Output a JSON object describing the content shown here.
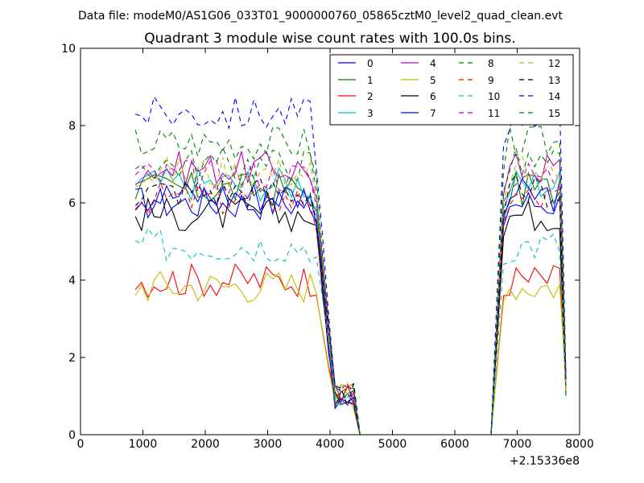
{
  "figure": {
    "suptitle": "Data file: modeM0/AS1G06_033T01_9000000760_05865cztM0_level2_quad_clean.evt"
  },
  "chart_data": {
    "type": "line",
    "title": "Quadrant 3 module wise count rates with 100.0s bins.",
    "xlabel": "",
    "ylabel": "",
    "xlim": [
      0,
      8000
    ],
    "ylim": [
      0,
      10
    ],
    "x_ticks": [
      "0",
      "1000",
      "2000",
      "3000",
      "4000",
      "5000",
      "6000",
      "7000",
      "8000"
    ],
    "y_ticks": [
      "0",
      "2",
      "4",
      "6",
      "8",
      "10"
    ],
    "x_offset_label": "+2.15336e8",
    "grid": false,
    "legend_position": "top-right",
    "legend_columns": 4,
    "bins": {
      "start": 880,
      "step": 100,
      "count": 70,
      "gap_from": 4480,
      "gap_to": 6580
    },
    "series": [
      {
        "name": "0",
        "color": "#0000ff",
        "dash": "solid",
        "level": 6.0
      },
      {
        "name": "1",
        "color": "#008000",
        "dash": "solid",
        "level": 6.35
      },
      {
        "name": "2",
        "color": "#ff0000",
        "dash": "solid",
        "level": 4.0
      },
      {
        "name": "3",
        "color": "#00bfbf",
        "dash": "solid",
        "level": 6.5
      },
      {
        "name": "4",
        "color": "#bf00bf",
        "dash": "solid",
        "level": 6.9
      },
      {
        "name": "5",
        "color": "#bfbf00",
        "dash": "solid",
        "level": 3.85
      },
      {
        "name": "6",
        "color": "#000000",
        "dash": "solid",
        "level": 5.7
      },
      {
        "name": "7",
        "color": "#0000ff",
        "dash": "solid",
        "level": 6.2
      },
      {
        "name": "8",
        "color": "#008000",
        "dash": "dashed",
        "level": 7.55
      },
      {
        "name": "9",
        "color": "#ff0000",
        "dash": "dashed",
        "level": 6.1
      },
      {
        "name": "10",
        "color": "#00bfbf",
        "dash": "dashed",
        "level": 4.9
      },
      {
        "name": "11",
        "color": "#bf00bf",
        "dash": "dashed",
        "level": 6.7
      },
      {
        "name": "12",
        "color": "#bfbf00",
        "dash": "dashed",
        "level": 6.8
      },
      {
        "name": "13",
        "color": "#000000",
        "dash": "dashed",
        "level": 6.3
      },
      {
        "name": "14",
        "color": "#0000ff",
        "dash": "dashed",
        "level": 8.3
      },
      {
        "name": "15",
        "color": "#008000",
        "dash": "dashed",
        "level": 7.0
      }
    ]
  }
}
